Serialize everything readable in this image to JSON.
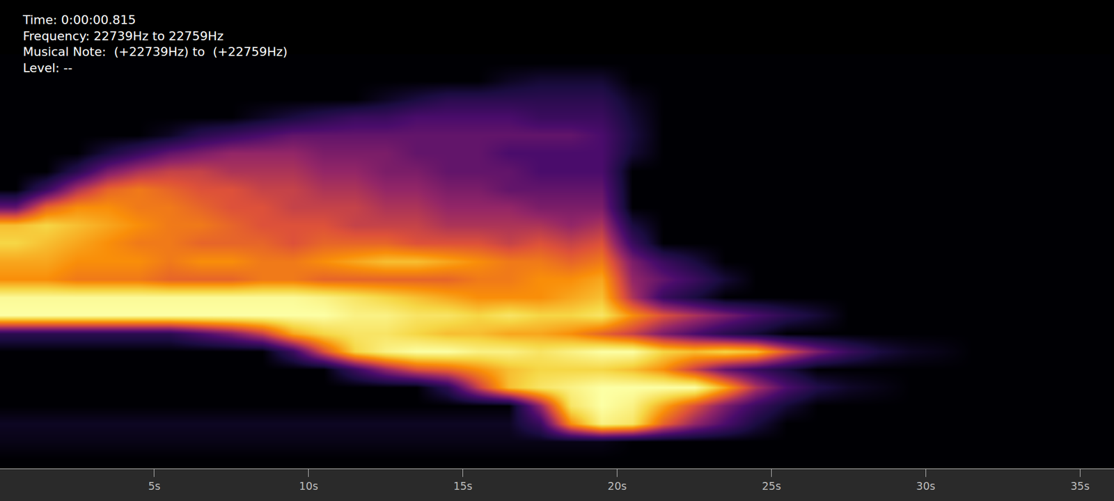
{
  "chart_data": {
    "type": "heatmap",
    "annotations": [
      "Time: 0:00:00.815",
      "Frequency: 22739Hz to 22759Hz",
      "Musical Note:  (+22739Hz) to  (+22759Hz)",
      "Level: --"
    ],
    "x": [
      0.5,
      1.5,
      2.5,
      3.5,
      4.5,
      5.5,
      6.5,
      7.5,
      8.5,
      9.5,
      10.5,
      11.5,
      12.5,
      13.5,
      14.5,
      15.5,
      16.5,
      17.5,
      18.5,
      19.5,
      20.5,
      21.5,
      22.5,
      23.5,
      24.5,
      25.5,
      26.5,
      27.5,
      28.5,
      29.5,
      30.5,
      31.5,
      32.5,
      33.5,
      34.5,
      35.5
    ],
    "y": [
      0.5,
      1.5,
      2.5,
      3.5,
      4.5,
      5.5,
      6.5,
      7.5,
      8.5,
      9.5,
      10.5,
      11.5,
      12.5,
      13.5,
      14.5,
      15.5,
      16.5,
      17.5,
      18.5,
      19.5,
      20.5,
      21.5,
      22.5
    ],
    "cells": [
      [
        0,
        0,
        0,
        0,
        0,
        0,
        0,
        0,
        0,
        0,
        0,
        0,
        0,
        0,
        0,
        0,
        0,
        0,
        0,
        0,
        0,
        0,
        0,
        0,
        0,
        0,
        0,
        0,
        0,
        0,
        0,
        0,
        0,
        0,
        0,
        0
      ],
      [
        3,
        3,
        3,
        3,
        3,
        3,
        3,
        3,
        3,
        3,
        3,
        3,
        3,
        3,
        3,
        3,
        3,
        3,
        3,
        3,
        0,
        0,
        0,
        0,
        0,
        0,
        0,
        0,
        0,
        0,
        0,
        0,
        0,
        0,
        0,
        0
      ],
      [
        5,
        5,
        5,
        5,
        5,
        5,
        5,
        5,
        5,
        5,
        5,
        5,
        5,
        5,
        5,
        5,
        5,
        20,
        70,
        95,
        90,
        60,
        40,
        25,
        10,
        0,
        0,
        0,
        0,
        0,
        0,
        0,
        0,
        0,
        0,
        0
      ],
      [
        0,
        0,
        0,
        0,
        0,
        0,
        0,
        0,
        0,
        0,
        0,
        0,
        0,
        0,
        0,
        0,
        0,
        40,
        90,
        100,
        95,
        75,
        55,
        35,
        20,
        8,
        0,
        0,
        0,
        0,
        0,
        0,
        0,
        0,
        0,
        0
      ],
      [
        0,
        0,
        0,
        0,
        0,
        0,
        0,
        0,
        0,
        0,
        0,
        0,
        0,
        0,
        15,
        50,
        80,
        90,
        95,
        100,
        100,
        100,
        100,
        75,
        45,
        25,
        12,
        6,
        3,
        0,
        0,
        0,
        0,
        0,
        0,
        0
      ],
      [
        0,
        0,
        0,
        0,
        0,
        0,
        0,
        0,
        0,
        0,
        0,
        20,
        40,
        55,
        60,
        70,
        80,
        85,
        85,
        85,
        80,
        70,
        50,
        30,
        20,
        10,
        0,
        0,
        0,
        0,
        0,
        0,
        0,
        0,
        0,
        0
      ],
      [
        0,
        0,
        0,
        0,
        0,
        0,
        0,
        0,
        0,
        20,
        55,
        85,
        95,
        100,
        100,
        95,
        95,
        90,
        95,
        100,
        100,
        85,
        80,
        85,
        80,
        55,
        35,
        20,
        10,
        5,
        3,
        0,
        0,
        0,
        0,
        0
      ],
      [
        15,
        15,
        15,
        15,
        15,
        15,
        25,
        35,
        50,
        75,
        85,
        90,
        90,
        85,
        80,
        80,
        75,
        75,
        70,
        60,
        50,
        35,
        25,
        15,
        8,
        0,
        0,
        0,
        0,
        0,
        0,
        0,
        0,
        0,
        0,
        0
      ],
      [
        100,
        100,
        100,
        100,
        100,
        100,
        100,
        100,
        100,
        100,
        100,
        95,
        95,
        90,
        90,
        85,
        90,
        85,
        85,
        90,
        70,
        55,
        45,
        35,
        25,
        15,
        8,
        0,
        0,
        0,
        0,
        0,
        0,
        0,
        0,
        0
      ],
      [
        98,
        98,
        98,
        98,
        98,
        98,
        98,
        98,
        98,
        98,
        95,
        90,
        85,
        80,
        75,
        70,
        70,
        70,
        75,
        80,
        45,
        20,
        10,
        0,
        0,
        0,
        0,
        0,
        0,
        0,
        0,
        0,
        0,
        0,
        0,
        0
      ],
      [
        70,
        70,
        65,
        65,
        65,
        60,
        60,
        60,
        65,
        65,
        60,
        60,
        60,
        60,
        60,
        65,
        65,
        70,
        70,
        75,
        40,
        30,
        20,
        8,
        0,
        0,
        0,
        0,
        0,
        0,
        0,
        0,
        0,
        0,
        0,
        0
      ],
      [
        75,
        75,
        70,
        70,
        70,
        65,
        70,
        70,
        65,
        65,
        70,
        75,
        80,
        80,
        75,
        70,
        65,
        65,
        60,
        65,
        35,
        20,
        10,
        0,
        0,
        0,
        0,
        0,
        0,
        0,
        0,
        0,
        0,
        0,
        0,
        0
      ],
      [
        85,
        80,
        75,
        70,
        65,
        65,
        60,
        60,
        60,
        55,
        60,
        60,
        60,
        55,
        55,
        55,
        50,
        55,
        50,
        55,
        20,
        0,
        0,
        0,
        0,
        0,
        0,
        0,
        0,
        0,
        0,
        0,
        0,
        0,
        0,
        0
      ],
      [
        80,
        85,
        80,
        75,
        70,
        65,
        65,
        60,
        55,
        55,
        55,
        50,
        50,
        50,
        45,
        45,
        45,
        45,
        40,
        45,
        10,
        0,
        0,
        0,
        0,
        0,
        0,
        0,
        0,
        0,
        0,
        0,
        0,
        0,
        0,
        0
      ],
      [
        30,
        60,
        70,
        70,
        65,
        65,
        60,
        55,
        55,
        50,
        50,
        50,
        45,
        45,
        40,
        40,
        40,
        35,
        35,
        35,
        0,
        0,
        0,
        0,
        0,
        0,
        0,
        0,
        0,
        0,
        0,
        0,
        0,
        0,
        0,
        0
      ],
      [
        0,
        20,
        45,
        60,
        65,
        60,
        55,
        55,
        50,
        50,
        45,
        45,
        40,
        40,
        35,
        35,
        30,
        30,
        30,
        30,
        0,
        0,
        0,
        0,
        0,
        0,
        0,
        0,
        0,
        0,
        0,
        0,
        0,
        0,
        0,
        0
      ],
      [
        0,
        0,
        15,
        35,
        45,
        50,
        50,
        45,
        45,
        45,
        40,
        40,
        35,
        35,
        30,
        30,
        30,
        25,
        25,
        25,
        0,
        0,
        0,
        0,
        0,
        0,
        0,
        0,
        0,
        0,
        0,
        0,
        0,
        0,
        0,
        0
      ],
      [
        0,
        0,
        0,
        10,
        20,
        30,
        35,
        40,
        40,
        40,
        35,
        35,
        35,
        30,
        30,
        30,
        25,
        25,
        25,
        25,
        8,
        0,
        0,
        0,
        0,
        0,
        0,
        0,
        0,
        0,
        0,
        0,
        0,
        0,
        0,
        0
      ],
      [
        0,
        0,
        0,
        0,
        0,
        5,
        15,
        20,
        25,
        30,
        30,
        30,
        30,
        30,
        30,
        30,
        30,
        30,
        30,
        25,
        10,
        0,
        0,
        0,
        0,
        0,
        0,
        0,
        0,
        0,
        0,
        0,
        0,
        0,
        0,
        0
      ],
      [
        0,
        0,
        0,
        0,
        0,
        0,
        0,
        0,
        5,
        10,
        15,
        20,
        20,
        25,
        25,
        25,
        25,
        20,
        20,
        20,
        8,
        0,
        0,
        0,
        0,
        0,
        0,
        0,
        0,
        0,
        0,
        0,
        0,
        0,
        0,
        0
      ],
      [
        0,
        0,
        0,
        0,
        0,
        0,
        0,
        0,
        0,
        0,
        0,
        0,
        5,
        10,
        15,
        15,
        15,
        15,
        15,
        15,
        5,
        0,
        0,
        0,
        0,
        0,
        0,
        0,
        0,
        0,
        0,
        0,
        0,
        0,
        0,
        0
      ],
      [
        0,
        0,
        0,
        0,
        0,
        0,
        0,
        0,
        0,
        0,
        0,
        0,
        0,
        0,
        0,
        0,
        5,
        8,
        8,
        8,
        0,
        0,
        0,
        0,
        0,
        0,
        0,
        0,
        0,
        0,
        0,
        0,
        0,
        0,
        0,
        0
      ],
      [
        0,
        0,
        0,
        0,
        0,
        0,
        0,
        0,
        0,
        0,
        0,
        0,
        0,
        0,
        0,
        0,
        0,
        0,
        0,
        0,
        0,
        0,
        0,
        0,
        0,
        0,
        0,
        0,
        0,
        0,
        0,
        0,
        0,
        0,
        0,
        0
      ]
    ],
    "zlim": [
      0,
      100
    ],
    "xlim": [
      0,
      36.1
    ],
    "xticks": [
      {
        "value": 5,
        "label": "5s"
      },
      {
        "value": 10,
        "label": "10s"
      },
      {
        "value": 15,
        "label": "15s"
      },
      {
        "value": 20,
        "label": "20s"
      },
      {
        "value": 25,
        "label": "25s"
      },
      {
        "value": 30,
        "label": "30s"
      },
      {
        "value": 35,
        "label": "35s"
      }
    ],
    "ylim": [
      0,
      26
    ],
    "tick_labels": "x",
    "grid": false
  }
}
